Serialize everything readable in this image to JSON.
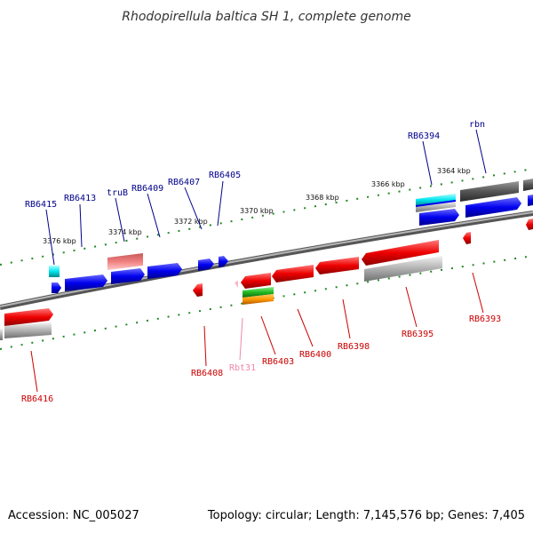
{
  "title": "Rhodopirellula baltica SH 1, complete genome",
  "footer": {
    "accession": "Accession: NC_005027",
    "info": "Topology: circular; Length: 7,145,576 bp; Genes: 7,405"
  },
  "colors": {
    "forward_gene": "#0000ee",
    "reverse_gene": "#ee0000",
    "pseudo_gene_light": "#f08080",
    "forward_label": "#00008b",
    "reverse_label": "#cc0000",
    "trna_label": "#ee88aa",
    "grey_feature": "#aaaaaa",
    "dark_grey_feature": "#555555",
    "cyan_feature": "#00e5ee",
    "green_feature": "#22bb22",
    "orange_feature": "#ff9900",
    "tick_color": "#228822",
    "backbone": "#888888"
  },
  "scale_labels": [
    "3376 kbp",
    "3374 kbp",
    "3372 kbp",
    "3370 kbp",
    "3368 kbp",
    "3366 kbp",
    "3364 kbp"
  ],
  "gene_labels": {
    "forward": [
      "RB6415",
      "RB6413",
      "truB",
      "RB6409",
      "RB6407",
      "RB6405",
      "RB6394",
      "rbn"
    ],
    "reverse": [
      "RB6416",
      "RB6408",
      "Rbt31",
      "RB6403",
      "RB6400",
      "RB6398",
      "RB6395",
      "RB6393"
    ]
  }
}
